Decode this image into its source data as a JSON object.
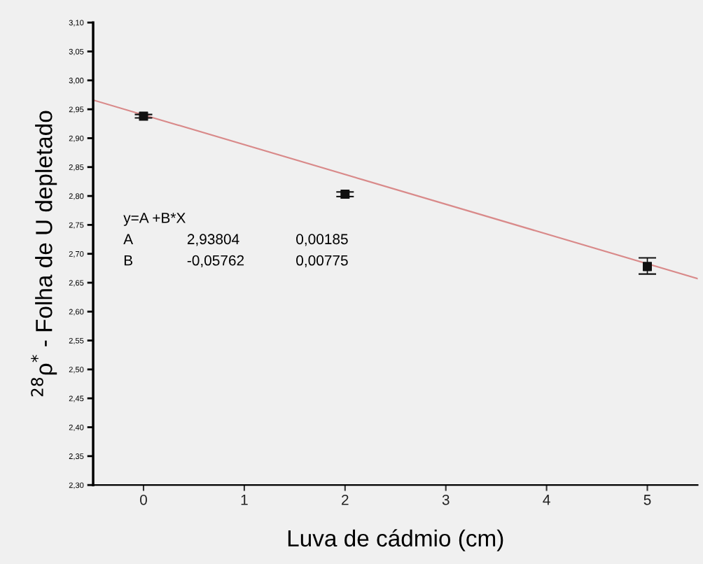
{
  "chart_data": {
    "type": "scatter",
    "xlabel": "Luva de cádmio (cm)",
    "ylabel": "$^{28}$ρ$^{*}$ - Folha de U depletado",
    "series": [
      {
        "color": "#111111",
        "x": [
          0,
          2,
          5
        ],
        "values": [
          2.938,
          2.803,
          2.678
        ],
        "errors": [
          0.003,
          0.004,
          [
            2.665,
            2.693
          ]
        ],
        "marker": "square"
      },
      {
        "type": "line",
        "color": "#d98a8a",
        "x": [
          -0.5,
          5.5
        ],
        "values": [
          2.966,
          2.657
        ],
        "line_style": "solid"
      }
    ],
    "xlim": [
      -0.5,
      5.5
    ],
    "xticks": [
      0,
      1,
      2,
      3,
      4,
      5
    ],
    "ylim": [
      2.3,
      3.1
    ],
    "yticks": [
      {
        "value": 2.3,
        "label": "2,30"
      },
      {
        "value": 2.35,
        "label": "2,35"
      },
      {
        "value": 2.4,
        "label": "2,40"
      },
      {
        "value": 2.45,
        "label": "2,45"
      },
      {
        "value": 2.5,
        "label": "2,50"
      },
      {
        "value": 2.55,
        "label": "2,55"
      },
      {
        "value": 2.6,
        "label": "2,60"
      },
      {
        "value": 2.65,
        "label": "2,65"
      },
      {
        "value": 2.7,
        "label": "2,70"
      },
      {
        "value": 2.75,
        "label": "2,75"
      },
      {
        "value": 2.8,
        "label": "2,80"
      },
      {
        "value": 2.85,
        "label": "2,85"
      },
      {
        "value": 2.9,
        "label": "2,90"
      },
      {
        "value": 2.95,
        "label": "2,95"
      },
      {
        "value": 3.0,
        "label": "3,00"
      },
      {
        "value": 3.05,
        "label": "3,05"
      },
      {
        "value": 3.1,
        "label": "3,10"
      }
    ],
    "annotations": [
      "y=A +B*X",
      "A\t2,93804\t0,00185",
      "B\t-0,05762\t0,00775"
    ],
    "grid": false
  }
}
